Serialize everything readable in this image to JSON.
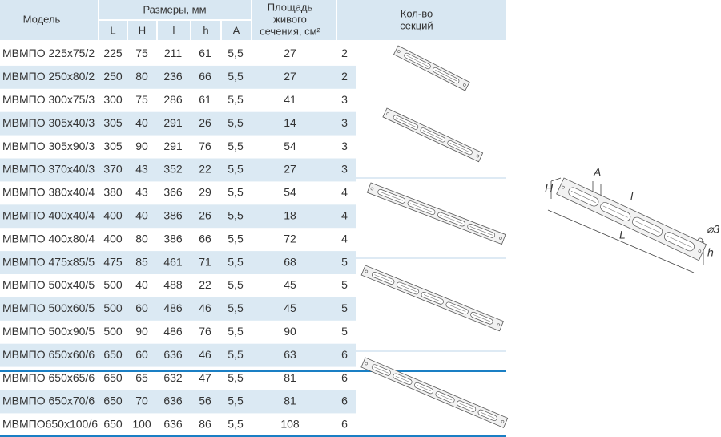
{
  "header": {
    "model": "Модель",
    "dims": "Размеры, мм",
    "dim_cols": [
      "L",
      "H",
      "l",
      "h",
      "A"
    ],
    "area": [
      "Площадь",
      "живого",
      "сечения, см²"
    ],
    "sections": [
      "Кол-во",
      "секций"
    ]
  },
  "table": {
    "rows": [
      [
        "МВМПО 225x75/2",
        "225",
        "75",
        "211",
        "61",
        "5,5",
        "27",
        "2"
      ],
      [
        "МВМПО 250x80/2",
        "250",
        "80",
        "236",
        "66",
        "5,5",
        "27",
        "2"
      ],
      [
        "МВМПО 300x75/3",
        "300",
        "75",
        "286",
        "61",
        "5,5",
        "41",
        "3"
      ],
      [
        "МВМПО 305x40/3",
        "305",
        "40",
        "291",
        "26",
        "5,5",
        "14",
        "3"
      ],
      [
        "МВМПО 305x90/3",
        "305",
        "90",
        "291",
        "76",
        "5,5",
        "54",
        "3"
      ],
      [
        "МВМПО 370x40/3",
        "370",
        "43",
        "352",
        "22",
        "5,5",
        "27",
        "3"
      ],
      [
        "МВМПО 380x40/4",
        "380",
        "43",
        "366",
        "29",
        "5,5",
        "54",
        "4"
      ],
      [
        "МВМПО 400x40/4",
        "400",
        "40",
        "386",
        "26",
        "5,5",
        "18",
        "4"
      ],
      [
        "МВМПО 400x80/4",
        "400",
        "80",
        "386",
        "66",
        "5,5",
        "72",
        "4"
      ],
      [
        "МВМПО 475x85/5",
        "475",
        "85",
        "461",
        "71",
        "5,5",
        "68",
        "5"
      ],
      [
        "МВМПО 500x40/5",
        "500",
        "40",
        "488",
        "22",
        "5,5",
        "45",
        "5"
      ],
      [
        "МВМПО 500x60/5",
        "500",
        "60",
        "486",
        "46",
        "5,5",
        "45",
        "5"
      ],
      [
        "МВМПО 500x90/5",
        "500",
        "90",
        "486",
        "76",
        "5,5",
        "90",
        "5"
      ],
      [
        "МВМПО 650x60/6",
        "650",
        "60",
        "636",
        "46",
        "5,5",
        "63",
        "6"
      ],
      [
        "МВМПО 650x65/6",
        "650",
        "65",
        "632",
        "47",
        "5,5",
        "81",
        "6"
      ],
      [
        "МВМПО 650x70/6",
        "650",
        "70",
        "636",
        "56",
        "5,5",
        "81",
        "6"
      ],
      [
        "МВМПО650x100/6",
        "650",
        "100",
        "636",
        "86",
        "5,5",
        "108",
        "6"
      ]
    ]
  },
  "diagram": {
    "labels": [
      "H",
      "A",
      "l",
      "L",
      "h",
      "⌀3"
    ]
  }
}
